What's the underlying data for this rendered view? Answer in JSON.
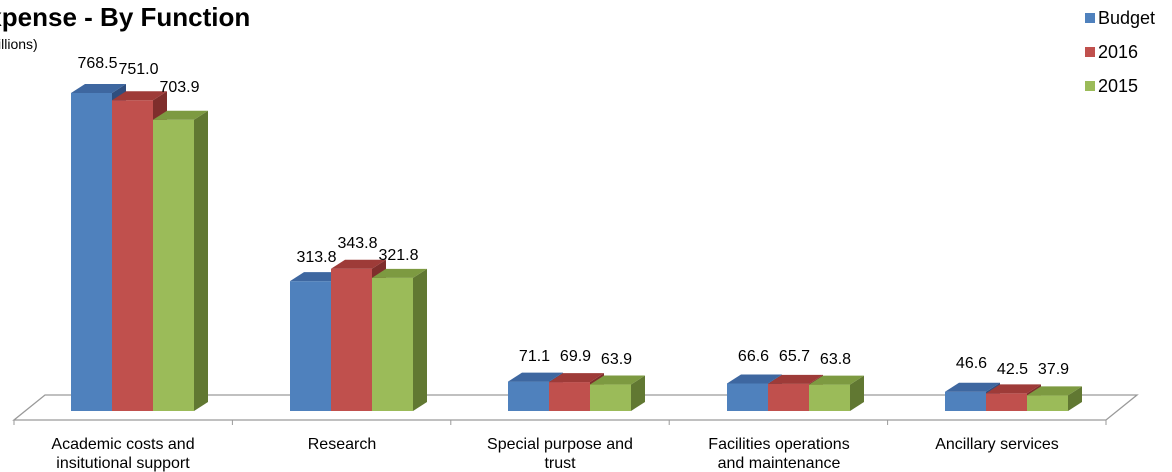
{
  "chart_data": {
    "type": "bar",
    "title": "Expense - By Function",
    "subtitle": "($ millions)",
    "categories": [
      [
        "Academic costs and",
        "insitutional support"
      ],
      [
        "Research"
      ],
      [
        "Special purpose and",
        "trust"
      ],
      [
        "Facilities operations",
        "and maintenance"
      ],
      [
        "Ancillary services"
      ]
    ],
    "series": [
      {
        "name": "Budget",
        "values": [
          768.5,
          313.8,
          71.1,
          66.6,
          46.6
        ],
        "color": "#4F81BD",
        "top_color": "#3E67A0",
        "side_color": "#2F4E7E"
      },
      {
        "name": "2016",
        "values": [
          751.0,
          343.8,
          69.9,
          65.7,
          42.5
        ],
        "color": "#C0504D",
        "top_color": "#9E3B38",
        "side_color": "#7F2E2C"
      },
      {
        "name": "2015",
        "values": [
          703.9,
          321.8,
          63.9,
          63.8,
          37.9
        ],
        "color": "#9BBB59",
        "top_color": "#7D9A41",
        "side_color": "#617832"
      }
    ],
    "value_labels": [
      [
        "768.5",
        "313.8",
        "71.1",
        "66.6",
        "46.6"
      ],
      [
        "751.0",
        "343.8",
        "69.9",
        "65.7",
        "42.5"
      ],
      [
        "703.9",
        "321.8",
        "63.9",
        "63.8",
        "37.9"
      ]
    ],
    "ylim": [
      0,
      800
    ],
    "grid": false,
    "legend_position": "top-right",
    "style": "3d-clustered-column"
  }
}
